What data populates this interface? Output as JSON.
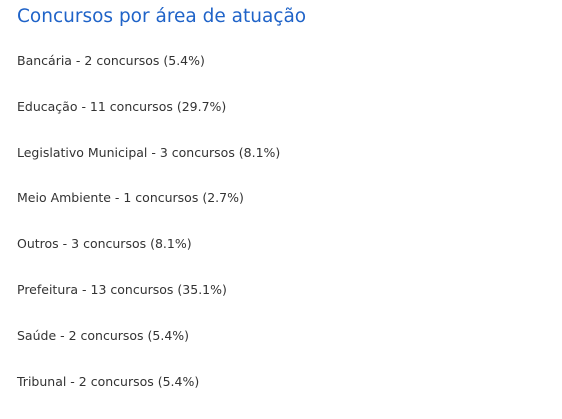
{
  "title": "Concursos por área de atuação",
  "areas": [
    {
      "label": "Bancária - 2 concursos (5.4%)"
    },
    {
      "label": "Educação - 11 concursos (29.7%)"
    },
    {
      "label": "Legislativo Municipal - 3 concursos (8.1%)"
    },
    {
      "label": "Meio Ambiente - 1 concursos (2.7%)"
    },
    {
      "label": "Outros - 3 concursos (8.1%)"
    },
    {
      "label": "Prefeitura - 13 concursos (35.1%)"
    },
    {
      "label": "Saúde - 2 concursos (5.4%)"
    },
    {
      "label": "Tribunal - 2 concursos (5.4%)"
    }
  ],
  "colors": {
    "title": "#1f63c8",
    "text": "#333333",
    "background": "#ffffff"
  }
}
